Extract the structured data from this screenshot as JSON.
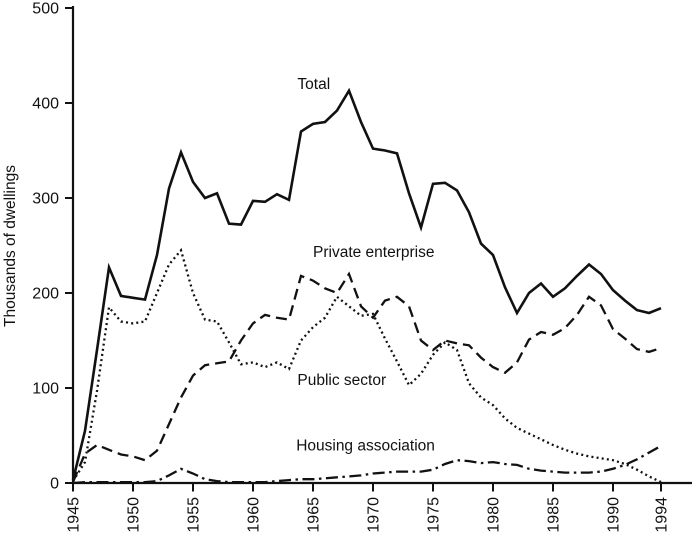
{
  "chart_data": {
    "type": "line",
    "title": "",
    "xlabel": "",
    "ylabel": "Thousands of dwellings",
    "ylim": [
      0,
      500
    ],
    "xlim": [
      1945,
      1996.5
    ],
    "yticks": [
      0,
      100,
      200,
      300,
      400,
      500
    ],
    "xticks": [
      1945,
      1950,
      1955,
      1960,
      1965,
      1970,
      1975,
      1980,
      1985,
      1990,
      1994
    ],
    "grid": false,
    "legend": "inline-annotations",
    "ink_color": "#111111",
    "background": "#ffffff",
    "x": [
      1945,
      1946,
      1947,
      1948,
      1949,
      1950,
      1951,
      1952,
      1953,
      1954,
      1955,
      1956,
      1957,
      1958,
      1959,
      1960,
      1961,
      1962,
      1963,
      1964,
      1965,
      1966,
      1967,
      1968,
      1969,
      1970,
      1971,
      1972,
      1973,
      1974,
      1975,
      1976,
      1977,
      1978,
      1979,
      1980,
      1981,
      1982,
      1983,
      1984,
      1985,
      1986,
      1987,
      1988,
      1989,
      1990,
      1991,
      1992,
      1993,
      1994
    ],
    "series": [
      {
        "name": "Total",
        "line_style": "solid",
        "values": [
          3,
          55,
          140,
          227,
          197,
          195,
          193,
          240,
          310,
          348,
          317,
          300,
          305,
          273,
          272,
          297,
          296,
          304,
          298,
          370,
          378,
          380,
          392,
          413,
          380,
          352,
          350,
          347,
          305,
          269,
          315,
          316,
          308,
          285,
          252,
          240,
          206,
          179,
          200,
          210,
          196,
          205,
          218,
          230,
          220,
          203,
          192,
          182,
          179,
          184
        ]
      },
      {
        "name": "Private enterprise",
        "line_style": "dashed",
        "values": [
          1,
          31,
          40,
          35,
          30,
          28,
          24,
          34,
          62,
          90,
          113,
          124,
          126,
          128,
          150,
          168,
          177,
          174,
          172,
          218,
          213,
          205,
          200,
          220,
          186,
          174,
          192,
          196,
          186,
          150,
          140,
          150,
          147,
          145,
          132,
          122,
          116,
          127,
          151,
          159,
          156,
          163,
          177,
          196,
          187,
          162,
          152,
          141,
          138,
          142
        ]
      },
      {
        "name": "Public sector",
        "line_style": "dotted",
        "values": [
          2,
          22,
          97,
          185,
          170,
          168,
          170,
          200,
          230,
          245,
          200,
          172,
          170,
          148,
          125,
          127,
          122,
          127,
          120,
          150,
          164,
          174,
          196,
          186,
          176,
          178,
          152,
          128,
          103,
          115,
          135,
          148,
          140,
          105,
          90,
          82,
          68,
          58,
          52,
          46,
          40,
          35,
          31,
          28,
          26,
          24,
          20,
          14,
          7,
          1
        ]
      },
      {
        "name": "Housing association",
        "line_style": "dashdot",
        "values": [
          0,
          1,
          1,
          1,
          1,
          1,
          1,
          2,
          8,
          15,
          10,
          4,
          2,
          1,
          1,
          1,
          1,
          2,
          3,
          4,
          4,
          5,
          6,
          7,
          8,
          10,
          11,
          12,
          12,
          12,
          14,
          20,
          24,
          23,
          21,
          22,
          20,
          19,
          15,
          13,
          12,
          11,
          11,
          11,
          12,
          15,
          19,
          25,
          32,
          39
        ]
      }
    ],
    "annotations": [
      {
        "text": "Total",
        "year": 1963.7,
        "value": 415
      },
      {
        "text": "Private enterprise",
        "year": 1965.0,
        "value": 238
      },
      {
        "text": "Public sector",
        "year": 1963.7,
        "value": 103
      },
      {
        "text": "Housing association",
        "year": 1963.6,
        "value": 34
      }
    ]
  }
}
